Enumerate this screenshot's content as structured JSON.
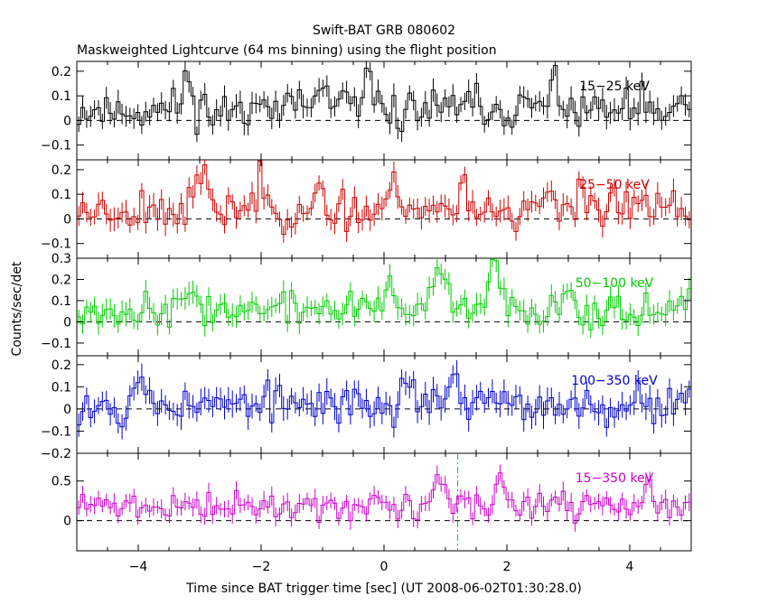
{
  "chart_data": {
    "type": "line",
    "title": "Swift-BAT GRB 080602",
    "subtitle": "Maskweighted Lightcurve (64 ms binning) using the flight position",
    "xlabel": "Time since BAT trigger time [sec] (UT 2008-06-02T01:30:28.0)",
    "ylabel": "Counts/sec/det",
    "xlim": [
      -5,
      5
    ],
    "x_ticks": [
      -4,
      -2,
      0,
      2,
      4
    ],
    "x_tick_labels": [
      "−4",
      "−2",
      "0",
      "2",
      "4"
    ],
    "bin_width_sec": 0.064,
    "vertical_marker_x": 1.2,
    "panels": [
      {
        "name": "15-25 keV",
        "label": "15−25 keV",
        "color": "#000000",
        "ylim": [
          -0.16,
          0.24
        ],
        "y_ticks": [
          -0.1,
          0,
          0.1,
          0.2
        ],
        "y_tick_labels": [
          "−0.1",
          "0",
          "0.1",
          "0.2"
        ],
        "mean": 0.04,
        "noise": 0.055,
        "err": 0.04,
        "seed": 11,
        "features": [
          {
            "x": -3.2,
            "y": 0.17
          },
          {
            "x": -2.0,
            "y": 0.15
          },
          {
            "x": -1.0,
            "y": 0.14
          },
          {
            "x": -0.2,
            "y": 0.14
          },
          {
            "x": 1.3,
            "y": 0.07
          },
          {
            "x": 2.8,
            "y": 0.17
          }
        ]
      },
      {
        "name": "25-50 keV",
        "label": "25−50 keV",
        "color": "#cc0000",
        "ylim": [
          -0.16,
          0.24
        ],
        "y_ticks": [
          -0.1,
          0,
          0.1,
          0.2
        ],
        "y_tick_labels": [
          "−0.1",
          "0",
          "0.1",
          "0.2"
        ],
        "mean": 0.04,
        "noise": 0.055,
        "err": 0.04,
        "seed": 23,
        "features": [
          {
            "x": -3.0,
            "y": 0.18
          },
          {
            "x": -2.0,
            "y": 0.15
          },
          {
            "x": 0.2,
            "y": 0.15
          },
          {
            "x": 1.3,
            "y": 0.13
          },
          {
            "x": 3.2,
            "y": 0.14
          }
        ]
      },
      {
        "name": "50-100 keV",
        "label": "50−100 keV",
        "color": "#00cc00",
        "ylim": [
          -0.16,
          0.3
        ],
        "y_ticks": [
          -0.1,
          0,
          0.1,
          0.2,
          0.3
        ],
        "y_tick_labels": [
          "−0.1",
          "0",
          "0.1",
          "0.2",
          "0.3"
        ],
        "mean": 0.06,
        "noise": 0.05,
        "err": 0.045,
        "seed": 37,
        "features": [
          {
            "x": -3.1,
            "y": 0.15
          },
          {
            "x": 0.1,
            "y": 0.18
          },
          {
            "x": 0.9,
            "y": 0.25
          },
          {
            "x": 1.8,
            "y": 0.25
          },
          {
            "x": 3.0,
            "y": 0.15
          }
        ]
      },
      {
        "name": "100-350 keV",
        "label": "100−350 keV",
        "color": "#0000cc",
        "ylim": [
          -0.2,
          0.24
        ],
        "y_ticks": [
          -0.2,
          -0.1,
          0,
          0.1,
          0.2
        ],
        "y_tick_labels": [
          "−0.2",
          "−0.1",
          "0",
          "0.1",
          "0.2"
        ],
        "mean": 0.02,
        "noise": 0.055,
        "err": 0.05,
        "seed": 53,
        "features": [
          {
            "x": -4.0,
            "y": 0.16
          },
          {
            "x": 0.4,
            "y": 0.15
          },
          {
            "x": 1.1,
            "y": 0.16
          },
          {
            "x": 4.9,
            "y": 0.1
          }
        ]
      },
      {
        "name": "15-350 keV",
        "label": "15−350 keV",
        "color": "#cc00cc",
        "ylim": [
          -0.38,
          0.85
        ],
        "y_ticks": [
          0,
          0.5
        ],
        "y_tick_labels": [
          "0",
          "0.5"
        ],
        "mean": 0.18,
        "noise": 0.11,
        "err": 0.1,
        "seed": 71,
        "features": [
          {
            "x": 0.9,
            "y": 0.55
          },
          {
            "x": 1.9,
            "y": 0.55
          },
          {
            "x": 4.3,
            "y": 0.4
          }
        ]
      }
    ]
  }
}
